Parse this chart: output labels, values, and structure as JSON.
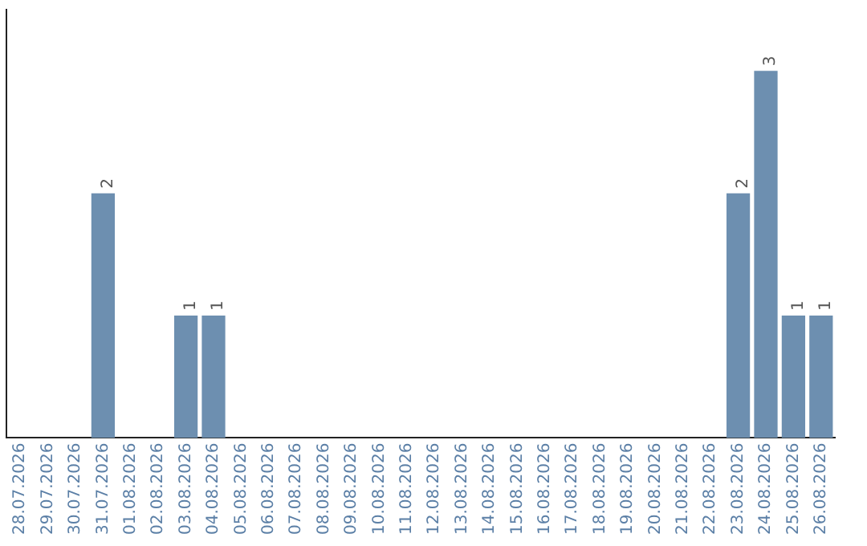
{
  "chart_data": {
    "type": "bar",
    "categories": [
      "28.07.2026",
      "29.07.2026",
      "30.07.2026",
      "31.07.2026",
      "01.08.2026",
      "02.08.2026",
      "03.08.2026",
      "04.08.2026",
      "05.08.2026",
      "06.08.2026",
      "07.08.2026",
      "08.08.2026",
      "09.08.2026",
      "10.08.2026",
      "11.08.2026",
      "12.08.2026",
      "13.08.2026",
      "14.08.2026",
      "15.08.2026",
      "16.08.2026",
      "17.08.2026",
      "18.08.2026",
      "19.08.2026",
      "20.08.2026",
      "21.08.2026",
      "22.08.2026",
      "23.08.2026",
      "24.08.2026",
      "25.08.2026",
      "26.08.2026"
    ],
    "values": [
      0,
      0,
      0,
      2,
      0,
      0,
      1,
      1,
      0,
      0,
      0,
      0,
      0,
      0,
      0,
      0,
      0,
      0,
      0,
      0,
      0,
      0,
      0,
      0,
      0,
      0,
      2,
      3,
      1,
      1
    ],
    "value_labels": [
      null,
      null,
      null,
      "2",
      null,
      null,
      "1",
      "1",
      null,
      null,
      null,
      null,
      null,
      null,
      null,
      null,
      null,
      null,
      null,
      null,
      null,
      null,
      null,
      null,
      null,
      null,
      "2",
      "3",
      "1",
      "1"
    ],
    "color": "#6d8fb0",
    "grid": false,
    "legend": false,
    "tick_labels": "x"
  }
}
